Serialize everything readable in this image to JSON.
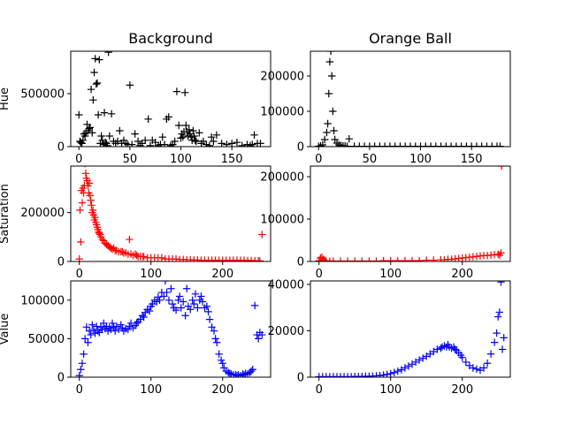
{
  "chart_data": [
    {
      "type": "scatter",
      "row": "hue",
      "column": "background",
      "title": "Background",
      "ylabel": "Hue",
      "marker": "+",
      "color": "#000000",
      "xlim": [
        -8,
        188
      ],
      "ylim": [
        0,
        900000
      ],
      "xticks": [
        0,
        50,
        100,
        150
      ],
      "yticks": [
        0,
        500000
      ],
      "xticklabels": [
        "0",
        "50",
        "100",
        "150"
      ],
      "yticklabels": [
        "0",
        "500000"
      ],
      "x": [
        0,
        1,
        2,
        3,
        4,
        5,
        6,
        7,
        8,
        9,
        10,
        11,
        12,
        13,
        14,
        15,
        16,
        17,
        18,
        19,
        20,
        21,
        22,
        23,
        24,
        25,
        26,
        27,
        28,
        29,
        30,
        32,
        34,
        36,
        38,
        40,
        42,
        44,
        46,
        48,
        50,
        52,
        55,
        58,
        60,
        62,
        65,
        68,
        70,
        72,
        75,
        78,
        80,
        82,
        84,
        86,
        88,
        90,
        92,
        94,
        96,
        98,
        100,
        101,
        102,
        103,
        104,
        105,
        106,
        107,
        108,
        109,
        110,
        111,
        112,
        113,
        114,
        115,
        118,
        120,
        122,
        125,
        128,
        130,
        132,
        135,
        140,
        145,
        150,
        155,
        160,
        165,
        168,
        170,
        172,
        175,
        178
      ],
      "y": [
        300000,
        50000,
        40000,
        30000,
        60000,
        120000,
        100000,
        130000,
        210000,
        150000,
        170000,
        180000,
        540000,
        130000,
        440000,
        700000,
        830000,
        590000,
        600000,
        300000,
        820000,
        30000,
        100000,
        60000,
        20000,
        320000,
        40000,
        30000,
        10000,
        890000,
        100000,
        310000,
        50000,
        30000,
        50000,
        150000,
        30000,
        60000,
        30000,
        20000,
        580000,
        20000,
        120000,
        50000,
        10000,
        30000,
        60000,
        260000,
        10000,
        60000,
        40000,
        10000,
        20000,
        90000,
        20000,
        260000,
        280000,
        10000,
        20000,
        50000,
        520000,
        200000,
        80000,
        120000,
        90000,
        140000,
        510000,
        200000,
        140000,
        100000,
        160000,
        120000,
        90000,
        60000,
        150000,
        100000,
        60000,
        50000,
        130000,
        30000,
        50000,
        20000,
        10000,
        90000,
        50000,
        110000,
        30000,
        20000,
        30000,
        40000,
        10000,
        20000,
        10000,
        20000,
        110000,
        30000,
        30000
      ]
    },
    {
      "type": "scatter",
      "row": "hue",
      "column": "orange-ball",
      "title": "Orange Ball",
      "ylabel": "",
      "marker": "+",
      "color": "#000000",
      "xlim": [
        -8,
        188
      ],
      "ylim": [
        0,
        270000
      ],
      "xticks": [
        0,
        50,
        100,
        150
      ],
      "yticks": [
        0,
        100000,
        200000
      ],
      "xticklabels": [
        "0",
        "50",
        "100",
        "150"
      ],
      "yticklabels": [
        "0",
        "100000",
        "200000"
      ],
      "x": [
        0,
        2,
        4,
        6,
        8,
        9,
        10,
        11,
        12,
        13,
        14,
        15,
        16,
        18,
        20,
        22,
        24,
        26,
        28,
        30,
        35,
        40,
        45,
        50,
        55,
        60,
        65,
        70,
        75,
        80,
        85,
        90,
        95,
        100,
        105,
        110,
        115,
        120,
        125,
        130,
        135,
        140,
        145,
        150,
        155,
        160,
        165,
        170,
        175,
        178
      ],
      "y": [
        1000,
        2000,
        5000,
        20000,
        40000,
        65000,
        150000,
        240000,
        270000,
        200000,
        100000,
        45000,
        20000,
        10000,
        5000,
        3000,
        2000,
        2000,
        1000,
        22000,
        1000,
        1000,
        1000,
        1000,
        1000,
        1000,
        1000,
        1000,
        1000,
        1000,
        1000,
        1000,
        1000,
        1000,
        1000,
        1000,
        1000,
        1000,
        1000,
        1000,
        1000,
        1000,
        1000,
        1000,
        1000,
        1000,
        1000,
        1000,
        1000,
        1000
      ]
    },
    {
      "type": "scatter",
      "row": "saturation",
      "column": "background",
      "title": "",
      "ylabel": "Saturation",
      "marker": "+",
      "color": "#ff0000",
      "xlim": [
        -12,
        267
      ],
      "ylim": [
        0,
        390000
      ],
      "xticks": [
        0,
        100,
        200
      ],
      "yticks": [
        0,
        200000
      ],
      "xticklabels": [
        "0",
        "100",
        "200"
      ],
      "yticklabels": [
        "0",
        "200000"
      ],
      "x": [
        0,
        1,
        2,
        3,
        4,
        5,
        6,
        7,
        8,
        9,
        10,
        11,
        12,
        13,
        14,
        15,
        16,
        17,
        18,
        19,
        20,
        21,
        22,
        23,
        24,
        25,
        26,
        27,
        28,
        29,
        30,
        32,
        34,
        36,
        38,
        40,
        42,
        44,
        46,
        48,
        50,
        52,
        55,
        58,
        60,
        62,
        65,
        68,
        70,
        72,
        75,
        78,
        80,
        82,
        85,
        88,
        90,
        95,
        100,
        105,
        110,
        115,
        120,
        125,
        130,
        135,
        140,
        145,
        150,
        155,
        160,
        165,
        170,
        175,
        180,
        185,
        190,
        195,
        200,
        205,
        210,
        215,
        220,
        225,
        230,
        235,
        240,
        245,
        250,
        252,
        255
      ],
      "y": [
        10000,
        210000,
        80000,
        290000,
        240000,
        300000,
        280000,
        310000,
        400000,
        360000,
        340000,
        330000,
        310000,
        280000,
        320000,
        270000,
        250000,
        230000,
        200000,
        210000,
        190000,
        170000,
        180000,
        160000,
        150000,
        140000,
        130000,
        120000,
        115000,
        110000,
        100000,
        90000,
        85000,
        75000,
        70000,
        65000,
        60000,
        55000,
        50000,
        55000,
        45000,
        45000,
        40000,
        40000,
        40000,
        35000,
        35000,
        30000,
        90000,
        30000,
        25000,
        30000,
        25000,
        20000,
        20000,
        20000,
        20000,
        15000,
        15000,
        15000,
        15000,
        15000,
        10000,
        10000,
        10000,
        10000,
        8000,
        8000,
        7000,
        7000,
        6000,
        6000,
        5000,
        5000,
        5000,
        5000,
        5000,
        5000,
        5000,
        5000,
        5000,
        5000,
        5000,
        5000,
        5000,
        4000,
        4000,
        3000,
        3000,
        2000,
        110000
      ]
    },
    {
      "type": "scatter",
      "row": "saturation",
      "column": "orange-ball",
      "title": "",
      "ylabel": "",
      "marker": "+",
      "color": "#ff0000",
      "xlim": [
        -12,
        267
      ],
      "ylim": [
        0,
        225000
      ],
      "xticks": [
        0,
        100,
        200
      ],
      "yticks": [
        0,
        100000,
        200000
      ],
      "xticklabels": [
        "0",
        "100",
        "200"
      ],
      "yticklabels": [
        "0",
        "100000",
        "200000"
      ],
      "x": [
        0,
        2,
        4,
        6,
        8,
        10,
        15,
        20,
        30,
        40,
        50,
        60,
        70,
        80,
        90,
        100,
        110,
        120,
        130,
        140,
        150,
        160,
        170,
        175,
        180,
        185,
        190,
        195,
        200,
        205,
        210,
        215,
        220,
        225,
        230,
        235,
        240,
        245,
        250,
        252,
        254,
        255
      ],
      "y": [
        2000,
        8000,
        10000,
        5000,
        2000,
        1000,
        1000,
        1000,
        1000,
        1000,
        1000,
        1000,
        1000,
        1000,
        2000,
        2000,
        2000,
        2000,
        2000,
        2000,
        3000,
        3000,
        4000,
        4000,
        5000,
        5000,
        6000,
        7000,
        8000,
        9000,
        10000,
        11000,
        12000,
        13000,
        14000,
        14000,
        15000,
        16000,
        17000,
        15000,
        20000,
        225000
      ]
    },
    {
      "type": "scatter",
      "row": "value",
      "column": "background",
      "title": "",
      "ylabel": "Value",
      "marker": "+",
      "color": "#0000ff",
      "xlim": [
        -12,
        267
      ],
      "ylim": [
        0,
        125000
      ],
      "xticks": [
        0,
        100,
        200
      ],
      "yticks": [
        0,
        50000,
        100000
      ],
      "xticklabels": [
        "0",
        "100",
        "200"
      ],
      "yticklabels": [
        "0",
        "50000",
        "100000"
      ],
      "x": [
        0,
        2,
        4,
        6,
        8,
        10,
        12,
        14,
        16,
        18,
        20,
        22,
        24,
        26,
        28,
        30,
        32,
        34,
        36,
        38,
        40,
        42,
        44,
        46,
        48,
        50,
        52,
        55,
        58,
        60,
        62,
        65,
        68,
        70,
        72,
        75,
        78,
        80,
        82,
        85,
        88,
        90,
        92,
        95,
        98,
        100,
        102,
        105,
        108,
        110,
        112,
        115,
        118,
        120,
        122,
        125,
        128,
        130,
        132,
        135,
        138,
        140,
        142,
        145,
        148,
        150,
        152,
        155,
        158,
        160,
        162,
        165,
        168,
        170,
        172,
        175,
        178,
        180,
        182,
        185,
        188,
        190,
        192,
        195,
        198,
        200,
        202,
        205,
        208,
        210,
        212,
        215,
        218,
        220,
        222,
        225,
        228,
        230,
        232,
        235,
        238,
        240,
        242,
        245,
        248,
        250,
        252,
        255
      ],
      "y": [
        2000,
        10000,
        18000,
        30000,
        50000,
        65000,
        45000,
        60000,
        55000,
        68000,
        62000,
        57000,
        66000,
        60000,
        58000,
        65000,
        62000,
        70000,
        63000,
        66000,
        60000,
        64000,
        62000,
        70000,
        65000,
        60000,
        66000,
        62000,
        68000,
        64000,
        60000,
        63000,
        62000,
        66000,
        70000,
        64000,
        67000,
        70000,
        72000,
        75000,
        80000,
        78000,
        84000,
        88000,
        86000,
        92000,
        95000,
        100000,
        98000,
        104000,
        100000,
        110000,
        105000,
        125000,
        110000,
        100000,
        115000,
        95000,
        90000,
        87000,
        100000,
        105000,
        90000,
        98000,
        80000,
        115000,
        92000,
        88000,
        100000,
        95000,
        108000,
        90000,
        100000,
        105000,
        98000,
        90000,
        92000,
        85000,
        75000,
        65000,
        60000,
        50000,
        45000,
        30000,
        22000,
        18000,
        12000,
        8000,
        6000,
        5000,
        4000,
        3000,
        3000,
        2000,
        3000,
        2000,
        4000,
        3000,
        5000,
        4000,
        6000,
        8000,
        10000,
        93000,
        55000,
        50000,
        58000,
        55000
      ]
    },
    {
      "type": "scatter",
      "row": "value",
      "column": "orange-ball",
      "title": "",
      "ylabel": "",
      "marker": "+",
      "color": "#0000ff",
      "xlim": [
        -12,
        267
      ],
      "ylim": [
        0,
        41500
      ],
      "xticks": [
        0,
        100,
        200
      ],
      "yticks": [
        0,
        20000,
        40000
      ],
      "xticklabels": [
        "0",
        "100",
        "200"
      ],
      "yticklabels": [
        "0",
        "20000",
        "40000"
      ],
      "x": [
        0,
        5,
        10,
        15,
        20,
        25,
        30,
        35,
        40,
        45,
        50,
        55,
        60,
        65,
        70,
        75,
        80,
        85,
        90,
        95,
        100,
        105,
        110,
        115,
        120,
        125,
        130,
        135,
        140,
        145,
        150,
        155,
        160,
        165,
        170,
        172,
        175,
        178,
        180,
        182,
        185,
        188,
        190,
        192,
        195,
        198,
        200,
        205,
        210,
        215,
        220,
        225,
        230,
        235,
        240,
        245,
        248,
        250,
        252,
        254,
        256,
        258
      ],
      "y": [
        200,
        200,
        200,
        200,
        200,
        200,
        200,
        200,
        200,
        200,
        300,
        300,
        300,
        400,
        400,
        500,
        600,
        700,
        900,
        1200,
        1500,
        2000,
        2600,
        3200,
        4000,
        4800,
        5600,
        6500,
        7400,
        8200,
        9000,
        10000,
        11000,
        12000,
        12500,
        13000,
        13500,
        13000,
        14000,
        13000,
        12500,
        13000,
        12000,
        11500,
        10500,
        9500,
        8500,
        6500,
        5000,
        4000,
        3500,
        3000,
        4000,
        6000,
        10000,
        15000,
        19000,
        26000,
        28000,
        41000,
        12000,
        17000
      ]
    }
  ]
}
